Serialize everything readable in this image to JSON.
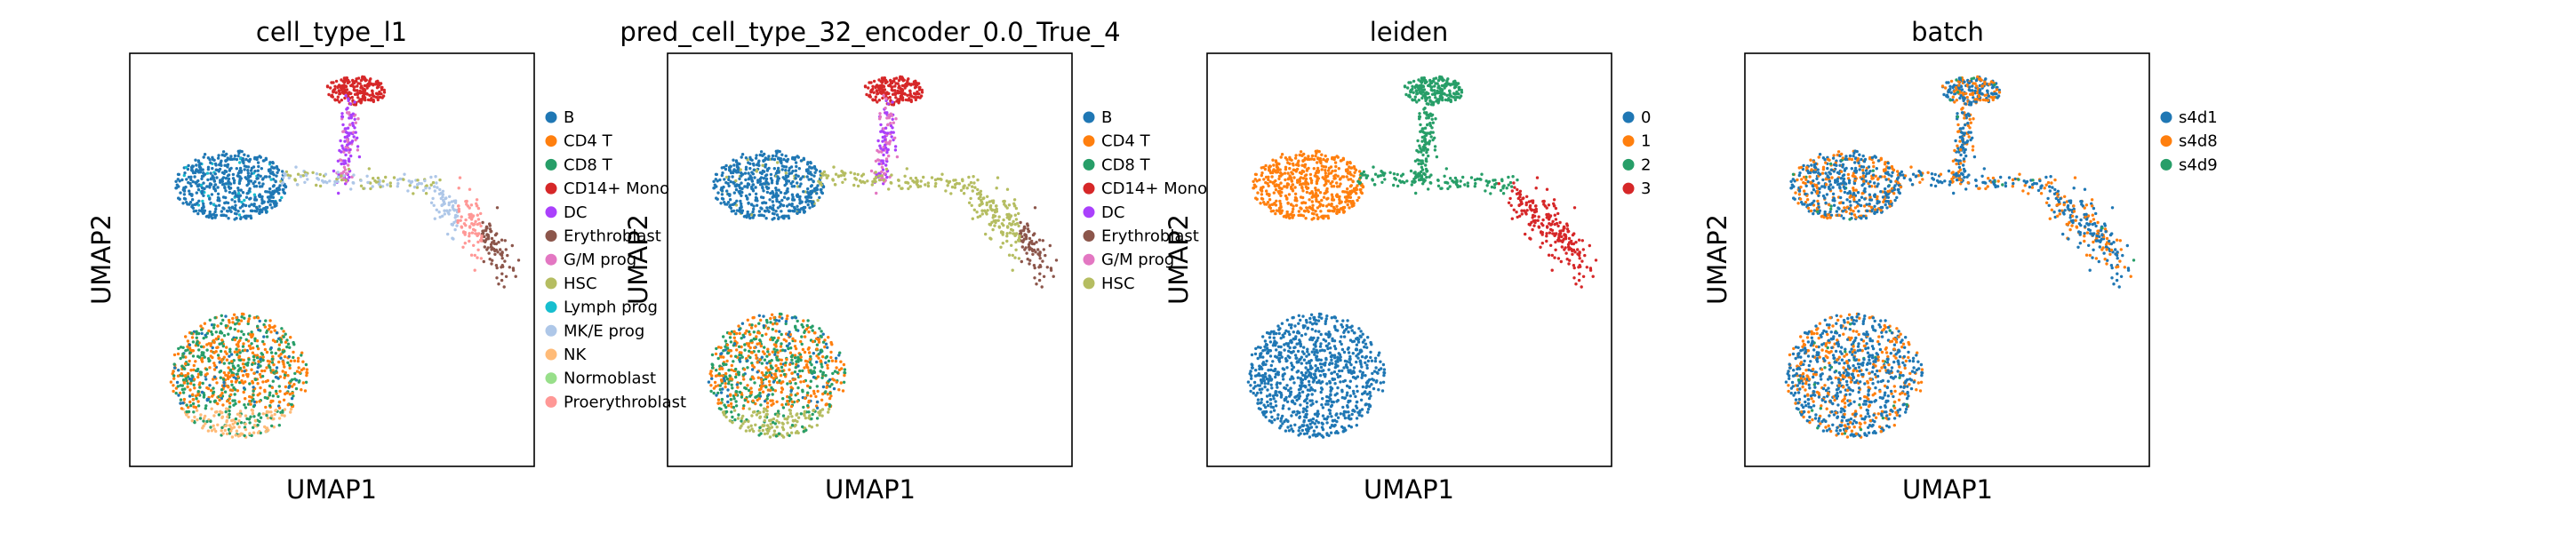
{
  "chart_data": [
    {
      "type": "scatter",
      "title": "cell_type_l1",
      "xlabel": "UMAP1",
      "ylabel": "UMAP2",
      "legend_position": "right",
      "legend": [
        {
          "label": "B",
          "color": "#1f77b4"
        },
        {
          "label": "CD4 T",
          "color": "#ff7f0e"
        },
        {
          "label": "CD8 T",
          "color": "#279e68"
        },
        {
          "label": "CD14+ Mono",
          "color": "#d62728"
        },
        {
          "label": "DC",
          "color": "#aa40fc"
        },
        {
          "label": "Erythroblast",
          "color": "#8c564b"
        },
        {
          "label": "G/M prog",
          "color": "#e377c2"
        },
        {
          "label": "HSC",
          "color": "#b5bd61"
        },
        {
          "label": "Lymph prog",
          "color": "#17becf"
        },
        {
          "label": "MK/E prog",
          "color": "#aec7e8"
        },
        {
          "label": "NK",
          "color": "#ffbb78"
        },
        {
          "label": "Normoblast",
          "color": "#98df8a"
        },
        {
          "label": "Proerythroblast",
          "color": "#ff9896"
        }
      ]
    },
    {
      "type": "scatter",
      "title": "pred_cell_type_32_encoder_0.0_True_4",
      "xlabel": "UMAP1",
      "ylabel": "UMAP2",
      "legend_position": "right",
      "legend": [
        {
          "label": "B",
          "color": "#1f77b4"
        },
        {
          "label": "CD4 T",
          "color": "#ff7f0e"
        },
        {
          "label": "CD8 T",
          "color": "#279e68"
        },
        {
          "label": "CD14+ Mono",
          "color": "#d62728"
        },
        {
          "label": "DC",
          "color": "#aa40fc"
        },
        {
          "label": "Erythroblast",
          "color": "#8c564b"
        },
        {
          "label": "G/M prog",
          "color": "#e377c2"
        },
        {
          "label": "HSC",
          "color": "#b5bd61"
        }
      ]
    },
    {
      "type": "scatter",
      "title": "leiden",
      "xlabel": "UMAP1",
      "ylabel": "UMAP2",
      "legend_position": "right",
      "legend": [
        {
          "label": "0",
          "color": "#1f77b4"
        },
        {
          "label": "1",
          "color": "#ff7f0e"
        },
        {
          "label": "2",
          "color": "#279e68"
        },
        {
          "label": "3",
          "color": "#d62728"
        }
      ]
    },
    {
      "type": "scatter",
      "title": "batch",
      "xlabel": "UMAP1",
      "ylabel": "UMAP2",
      "legend_position": "right",
      "legend": [
        {
          "label": "s4d1",
          "color": "#1f77b4"
        },
        {
          "label": "s4d8",
          "color": "#ff7f0e"
        },
        {
          "label": "s4d9",
          "color": "#279e68"
        }
      ]
    }
  ]
}
